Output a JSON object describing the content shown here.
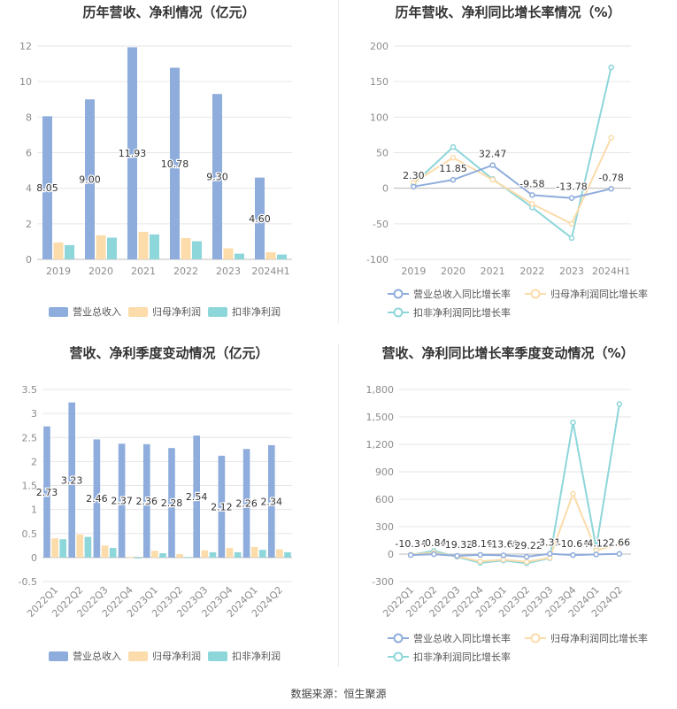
{
  "colors": {
    "revenue": "#8eacdc",
    "net_profit": "#fbdcaa",
    "deducted_profit": "#8dd6da",
    "axis_text": "#8c8c8c",
    "grid": "#e6e6e6",
    "title": "#333333"
  },
  "source_text": "数据来源：恒生聚源",
  "chart_data": [
    {
      "type": "bar",
      "title": "历年营收、净利情况（亿元）",
      "categories": [
        "2019",
        "2020",
        "2021",
        "2022",
        "2023",
        "2024H1"
      ],
      "ylim": [
        0,
        12
      ],
      "yticks": [
        "0",
        "2",
        "4",
        "6",
        "8",
        "10",
        "12"
      ],
      "ytick_values": [
        0,
        2,
        4,
        6,
        8,
        10,
        12
      ],
      "series": [
        {
          "name": "营业总收入",
          "values": [
            8.05,
            9.0,
            11.93,
            10.78,
            9.3,
            4.6
          ],
          "labels": [
            "8.05",
            "9.00",
            "11.93",
            "10.78",
            "9.30",
            "4.60"
          ]
        },
        {
          "name": "归母净利润",
          "values": [
            0.95,
            1.35,
            1.55,
            1.2,
            0.62,
            0.4
          ]
        },
        {
          "name": "扣非净利润",
          "values": [
            0.8,
            1.22,
            1.4,
            1.02,
            0.32,
            0.27
          ]
        }
      ],
      "legend": "bottom"
    },
    {
      "type": "line",
      "title": "历年营收、净利同比增长率情况（%）",
      "categories": [
        "2019",
        "2020",
        "2021",
        "2022",
        "2023",
        "2024H1"
      ],
      "ylim": [
        -100,
        200
      ],
      "yticks": [
        "-100",
        "-50",
        "0",
        "50",
        "100",
        "150",
        "200"
      ],
      "ytick_values": [
        -100,
        -50,
        0,
        50,
        100,
        150,
        200
      ],
      "series": [
        {
          "name": "营业总收入同比增长率",
          "values": [
            2.3,
            11.85,
            32.47,
            -9.58,
            -13.78,
            -0.78
          ],
          "labels": [
            "2.30",
            "11.85",
            "32.47",
            "-9.58",
            "-13.78",
            "-0.78"
          ]
        },
        {
          "name": "归母净利润同比增长率",
          "values": [
            8,
            43,
            12,
            -22,
            -50,
            71
          ]
        },
        {
          "name": "扣非净利润同比增长率",
          "values": [
            6,
            58,
            13,
            -27,
            -70,
            170
          ]
        }
      ],
      "legend": "bottom"
    },
    {
      "type": "bar",
      "title": "营收、净利季度变动情况（亿元）",
      "categories": [
        "2022Q1",
        "2022Q2",
        "2022Q3",
        "2022Q4",
        "2023Q1",
        "2023Q2",
        "2023Q3",
        "2023Q4",
        "2024Q1",
        "2024Q2"
      ],
      "ylim": [
        -0.5,
        3.5
      ],
      "yticks": [
        "-0.5",
        "0",
        "0.5",
        "1",
        "1.5",
        "2",
        "2.5",
        "3",
        "3.5"
      ],
      "ytick_values": [
        -0.5,
        0,
        0.5,
        1,
        1.5,
        2,
        2.5,
        3,
        3.5
      ],
      "series": [
        {
          "name": "营业总收入",
          "values": [
            2.73,
            3.23,
            2.46,
            2.37,
            2.36,
            2.28,
            2.54,
            2.12,
            2.26,
            2.34
          ],
          "labels": [
            "2.73",
            "3.23",
            "2.46",
            "2.37",
            "2.36",
            "2.28",
            "2.54",
            "2.12",
            "2.26",
            "2.34"
          ]
        },
        {
          "name": "归母净利润",
          "values": [
            0.4,
            0.48,
            0.25,
            0.01,
            0.14,
            0.07,
            0.15,
            0.2,
            0.22,
            0.17
          ]
        },
        {
          "name": "扣非净利润",
          "values": [
            0.38,
            0.43,
            0.2,
            -0.02,
            0.09,
            0.01,
            0.11,
            0.11,
            0.16,
            0.11
          ]
        }
      ],
      "legend": "bottom"
    },
    {
      "type": "line",
      "title": "营收、净利同比增长率季度变动情况（%）",
      "categories": [
        "2022Q1",
        "2022Q2",
        "2022Q3",
        "2022Q4",
        "2023Q1",
        "2023Q2",
        "2023Q3",
        "2023Q4",
        "2024Q1",
        "2024Q2"
      ],
      "ylim": [
        -300,
        1800
      ],
      "yticks": [
        "-300",
        "0",
        "300",
        "600",
        "900",
        "1,200",
        "1,500",
        "1,800"
      ],
      "ytick_values": [
        -300,
        0,
        300,
        600,
        900,
        1200,
        1500,
        1800
      ],
      "series": [
        {
          "name": "营业总收入同比增长率",
          "values": [
            -10.34,
            -0.84,
            -19.32,
            -8.16,
            -13.69,
            -29.22,
            3.31,
            -10.64,
            -4.12,
            2.66
          ],
          "labels": [
            "-10.34",
            "-0.84",
            "-19.32",
            "-8.16",
            "-13.69",
            "-29.22",
            "3.31",
            "-10.64",
            "-4.12",
            "2.66"
          ]
        },
        {
          "name": "归母净利润同比增长率",
          "values": [
            -5,
            15,
            -25,
            -80,
            -60,
            -85,
            -40,
            660,
            40,
            110
          ]
        },
        {
          "name": "扣非净利润同比增长率",
          "values": [
            -8,
            35,
            -30,
            -95,
            -70,
            -100,
            -45,
            1440,
            70,
            1640
          ]
        }
      ],
      "legend": "bottom"
    }
  ]
}
